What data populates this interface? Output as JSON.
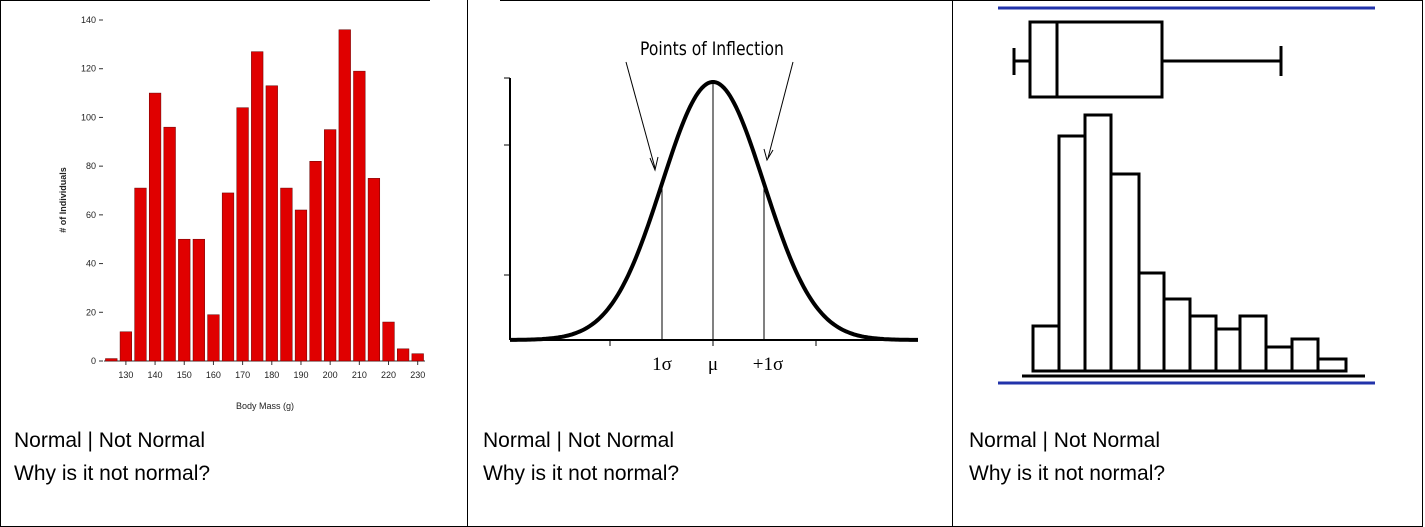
{
  "cells": [
    {
      "chart_data": {
        "type": "bar",
        "y_label": "# of Individuals",
        "x_label": "Body Mass (g)",
        "x": [
          125,
          130,
          135,
          140,
          145,
          150,
          155,
          160,
          165,
          170,
          175,
          180,
          185,
          190,
          195,
          200,
          205,
          210,
          215,
          220,
          225,
          230
        ],
        "values": [
          1,
          12,
          71,
          110,
          96,
          50,
          50,
          19,
          69,
          104,
          127,
          113,
          71,
          62,
          82,
          95,
          136,
          119,
          75,
          16,
          5,
          3
        ],
        "color": "#e00000",
        "xlim": [
          122.5,
          232.5
        ],
        "xticks": [
          130,
          140,
          150,
          160,
          170,
          180,
          190,
          200,
          210,
          220,
          230
        ],
        "ylim": [
          0,
          140
        ],
        "yticks": [
          0,
          20,
          40,
          60,
          80,
          100,
          120,
          140
        ]
      },
      "choice": "Normal | Not Normal",
      "question": "Why is it not normal?"
    },
    {
      "diagram": {
        "title": "Points of Inflection",
        "labels": [
          "1σ",
          "μ",
          "+1σ"
        ]
      },
      "choice": "Normal | Not Normal",
      "question": "Why is it not normal?"
    },
    {
      "choice": "Normal | Not Normal",
      "question": "Why is it not normal?"
    }
  ]
}
